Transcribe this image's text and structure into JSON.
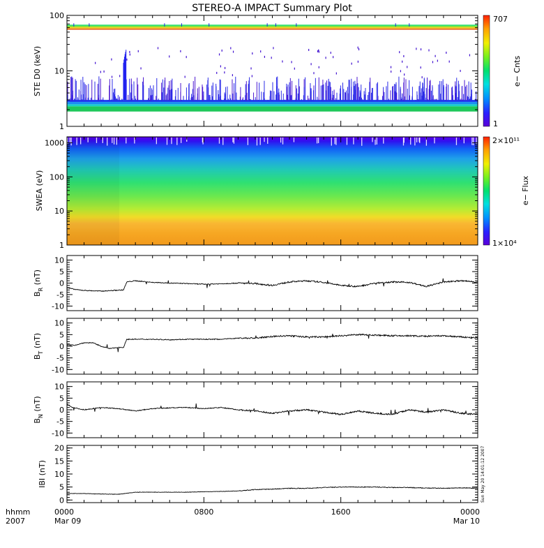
{
  "title": "STEREO-A IMPACT Summary Plot",
  "time_axis": {
    "row1_label": "hhmm",
    "row2_label": "2007",
    "ticks": [
      {
        "time": "0000",
        "date": "Mar 09",
        "hour": 0
      },
      {
        "time": "0800",
        "date": "",
        "hour": 8
      },
      {
        "time": "1600",
        "date": "",
        "hour": 16
      },
      {
        "time": "0000",
        "date": "Mar 10",
        "hour": 24
      }
    ]
  },
  "timestamp": "Sun May 20 14:01:12 2007",
  "chart_data": [
    {
      "type": "heatmap",
      "name": "ste",
      "ylabel": "STE D0 (keV)",
      "yscale": "log",
      "ylim": [
        1,
        100
      ],
      "yticks": [
        "1",
        "10",
        "100"
      ],
      "colorbar": {
        "label": "e− Cnts",
        "max": "707",
        "min": "1",
        "scale": "log"
      },
      "description": "Electron counts vs energy; bright band near 2 keV, saturated lines near 55–65 keV, burst near 0330"
    },
    {
      "type": "heatmap",
      "name": "swea",
      "ylabel": "SWEA (eV)",
      "yscale": "log",
      "ylim": [
        1,
        1500
      ],
      "yticks": [
        "1",
        "10",
        "100",
        "1000"
      ],
      "colorbar": {
        "label": "e− Flux",
        "max": "2×10¹¹",
        "min": "1×10⁴",
        "scale": "log"
      }
    },
    {
      "type": "line",
      "name": "br",
      "ylabel_main": "B",
      "ylabel_sub": "R",
      "ylabel_unit": " (nT)",
      "ylim": [
        -12,
        12
      ],
      "yticks": [
        -10,
        -5,
        0,
        5,
        10
      ],
      "x": [
        0,
        0.5,
        1,
        2,
        3,
        3.3,
        3.5,
        4,
        5,
        6,
        7,
        8,
        9,
        10,
        11,
        12,
        13,
        14,
        15,
        16,
        17,
        18,
        19,
        20,
        21,
        22,
        23,
        24
      ],
      "y": [
        -2,
        -2.8,
        -3.2,
        -3.5,
        -3.1,
        -3,
        0.5,
        1,
        0.3,
        0,
        -0.2,
        -0.5,
        -0.3,
        0,
        -0.2,
        -1,
        0.5,
        1,
        0.3,
        -1,
        -1.5,
        0,
        0.5,
        0.3,
        -1.5,
        0.5,
        1,
        0.5
      ]
    },
    {
      "type": "line",
      "name": "bt",
      "ylabel_main": "B",
      "ylabel_sub": "T",
      "ylabel_unit": " (nT)",
      "ylim": [
        -12,
        12
      ],
      "yticks": [
        -10,
        -5,
        0,
        5,
        10
      ],
      "x": [
        0,
        0.5,
        1,
        1.5,
        2,
        2.5,
        3,
        3.3,
        3.5,
        4,
        5,
        6,
        7,
        8,
        9,
        10,
        11,
        12,
        13,
        14,
        15,
        16,
        17,
        18,
        19,
        20,
        21,
        22,
        23,
        24
      ],
      "y": [
        0.5,
        0.5,
        1.5,
        1.5,
        0,
        -1,
        -0.5,
        -0.5,
        3,
        3,
        3,
        2.8,
        3,
        3,
        3,
        3.5,
        3.5,
        4.2,
        4.5,
        4,
        4,
        4.5,
        5,
        4.8,
        4.5,
        4.5,
        4.3,
        4.5,
        4,
        3.5
      ]
    },
    {
      "type": "line",
      "name": "bn",
      "ylabel_main": "B",
      "ylabel_sub": "N",
      "ylabel_unit": " (nT)",
      "ylim": [
        -12,
        12
      ],
      "yticks": [
        -10,
        -5,
        0,
        5,
        10
      ],
      "x": [
        0,
        0.3,
        1,
        2,
        3,
        4,
        5,
        6,
        7,
        8,
        9,
        10,
        11,
        12,
        13,
        14,
        15,
        16,
        17,
        18,
        19,
        20,
        21,
        22,
        23,
        24
      ],
      "y": [
        2.5,
        1,
        0,
        1,
        0.5,
        -0.5,
        0.5,
        0.8,
        1,
        0.5,
        1,
        0,
        -0.5,
        -1.5,
        -0.5,
        0,
        -1,
        -2,
        -0.5,
        -1.5,
        -2,
        0,
        -1,
        0,
        -1.5,
        -2
      ]
    },
    {
      "type": "line",
      "name": "bmag",
      "ylabel_main": "IBI",
      "ylabel_sub": "",
      "ylabel_unit": " (nT)",
      "ylim": [
        -1,
        21
      ],
      "yticks": [
        0,
        5,
        10,
        15,
        20
      ],
      "x": [
        0,
        1,
        2,
        3,
        4,
        5,
        6,
        7,
        8,
        9,
        10,
        11,
        12,
        13,
        14,
        15,
        16,
        17,
        18,
        19,
        20,
        21,
        22,
        23,
        24
      ],
      "y": [
        2.5,
        2.5,
        2.3,
        2.2,
        3,
        3,
        3,
        3,
        3.2,
        3.3,
        3.5,
        4,
        4.2,
        4.5,
        4.5,
        4.8,
        5,
        5,
        5,
        4.8,
        4.8,
        4.6,
        4.5,
        4.7,
        4.5
      ]
    }
  ]
}
